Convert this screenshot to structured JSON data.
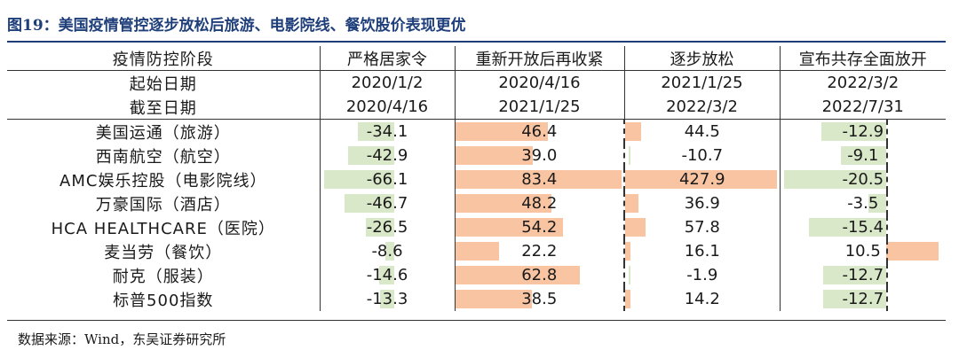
{
  "title": "图19：美国疫情管控逐步放松后旅游、电影院线、餐饮股价表现更优",
  "source": "数据来源：Wind，东吴证券研究所",
  "header": {
    "row_label": "疫情防控阶段",
    "start_label": "起始日期",
    "end_label": "截至日期"
  },
  "phases": [
    {
      "name": "严格居家令",
      "start": "2020/1/2",
      "end": "2020/4/16"
    },
    {
      "name": "重新开放后再收紧",
      "start": "2020/4/16",
      "end": "2021/1/25"
    },
    {
      "name": "逐步放松",
      "start": "2021/1/25",
      "end": "2022/3/2"
    },
    {
      "name": "宣布共存全面放开",
      "start": "2022/3/2",
      "end": "2022/7/31"
    }
  ],
  "colors": {
    "negative": "#d9e8c8",
    "positive": "#f8c4a2",
    "title": "#1f3f7a"
  },
  "chart_data": {
    "type": "table",
    "columns": [
      "严格居家令",
      "重新开放后再收紧",
      "逐步放松",
      "宣布共存全面放开"
    ],
    "rows": [
      {
        "label": "美国运通（旅游）",
        "values": [
          -34.1,
          46.4,
          44.5,
          -12.9
        ]
      },
      {
        "label": "西南航空（航空）",
        "values": [
          -42.9,
          39.0,
          -10.7,
          -9.1
        ]
      },
      {
        "label": "AMC娱乐控股（电影院线）",
        "values": [
          -66.1,
          83.4,
          427.9,
          -20.5
        ]
      },
      {
        "label": "万豪国际（酒店）",
        "values": [
          -46.7,
          48.2,
          36.9,
          -3.5
        ]
      },
      {
        "label": "HCA HEALTHCARE（医院）",
        "values": [
          -26.5,
          54.2,
          57.8,
          -15.4
        ]
      },
      {
        "label": "麦当劳（餐饮）",
        "values": [
          -8.6,
          22.2,
          16.1,
          10.5
        ]
      },
      {
        "label": "耐克（服装）",
        "values": [
          -14.6,
          62.8,
          -1.9,
          -12.7
        ]
      },
      {
        "label": "标普500指数",
        "values": [
          -13.3,
          38.5,
          14.2,
          -12.7
        ]
      }
    ],
    "display_values": [
      [
        "-34.1",
        "46.4",
        "44.5",
        "-12.9"
      ],
      [
        "-42.9",
        "39.0",
        "-10.7",
        "-9.1"
      ],
      [
        "-66.1",
        "83.4",
        "427.9",
        "-20.5"
      ],
      [
        "-46.7",
        "48.2",
        "36.9",
        "-3.5"
      ],
      [
        "-26.5",
        "54.2",
        "57.8",
        "-15.4"
      ],
      [
        "-8.6",
        "22.2",
        "16.1",
        "10.5"
      ],
      [
        "-14.6",
        "62.8",
        "-1.9",
        "-12.7"
      ],
      [
        "-13.3",
        "38.5",
        "14.2",
        "-12.7"
      ]
    ]
  }
}
